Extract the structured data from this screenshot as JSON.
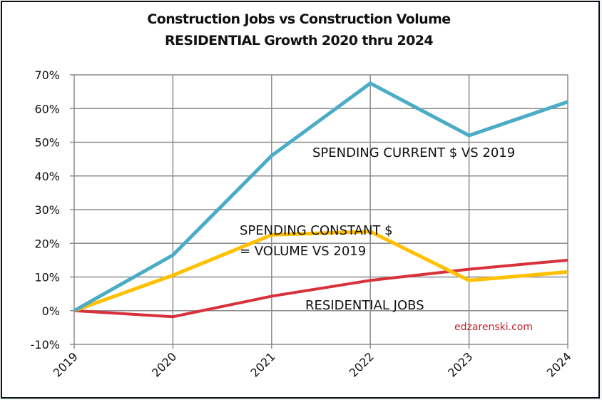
{
  "chart_data": {
    "type": "line",
    "title": "Construction Jobs vs Construction Volume",
    "subtitle": "RESIDENTIAL Growth 2020 thru 2024",
    "xlabel": "",
    "ylabel": "",
    "categories": [
      "2019",
      "2020",
      "2021",
      "2022",
      "2023",
      "2024"
    ],
    "ylim": [
      -0.1,
      0.7
    ],
    "yticks": [
      -0.1,
      0.0,
      0.1,
      0.2,
      0.3,
      0.4,
      0.5,
      0.6,
      0.7
    ],
    "ytick_labels": [
      "-10%",
      "0%",
      "10%",
      "20%",
      "30%",
      "40%",
      "50%",
      "60%",
      "70%"
    ],
    "grid": true,
    "legend": "none (inline annotations)",
    "series": [
      {
        "name": "SPENDING CURRENT $ VS 2019",
        "color": "#4bacc6",
        "values": [
          0.0,
          0.165,
          0.46,
          0.675,
          0.52,
          0.62
        ]
      },
      {
        "name": "SPENDING CONSTANT $ = VOLUME VS 2019",
        "color": "#ffc000",
        "values": [
          0.0,
          0.105,
          0.225,
          0.235,
          0.09,
          0.115
        ]
      },
      {
        "name": "RESIDENTIAL JOBS",
        "color": "#d9303a",
        "values": [
          0.0,
          -0.018,
          0.043,
          0.09,
          0.123,
          0.15
        ]
      }
    ],
    "annotations": [
      {
        "text": "SPENDING CURRENT $ VS 2019",
        "series": 0
      },
      {
        "text": "SPENDING CONSTANT $",
        "series": 1
      },
      {
        "text": "= VOLUME VS 2019",
        "series": 1
      },
      {
        "text": "RESIDENTIAL JOBS",
        "series": 2
      }
    ],
    "watermark": "edzarenski.com"
  }
}
